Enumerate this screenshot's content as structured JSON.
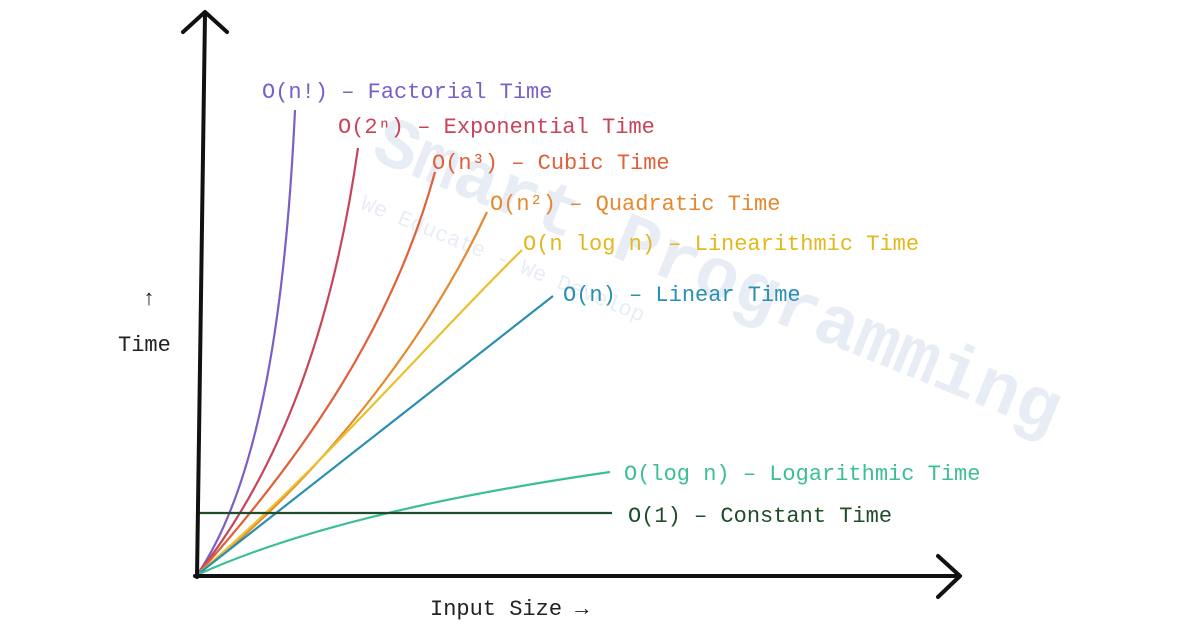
{
  "y_axis": {
    "arrow": "↑",
    "label": "Time"
  },
  "x_axis": {
    "label": "Input Size →"
  },
  "curves": [
    {
      "label": "O(n!) – Factorial Time"
    },
    {
      "label": "O(2ⁿ) – Exponential Time"
    },
    {
      "label": "O(n³) – Cubic Time"
    },
    {
      "label": "O(n²) – Quadratic Time"
    },
    {
      "label": "O(n log n) – Linearithmic Time"
    },
    {
      "label": "O(n) – Linear Time"
    },
    {
      "label": "O(log n) – Logarithmic Time"
    },
    {
      "label": "O(1) – Constant Time"
    }
  ],
  "watermark": {
    "title": "Smart Programming",
    "tagline": "We Educate - We Develop"
  }
}
